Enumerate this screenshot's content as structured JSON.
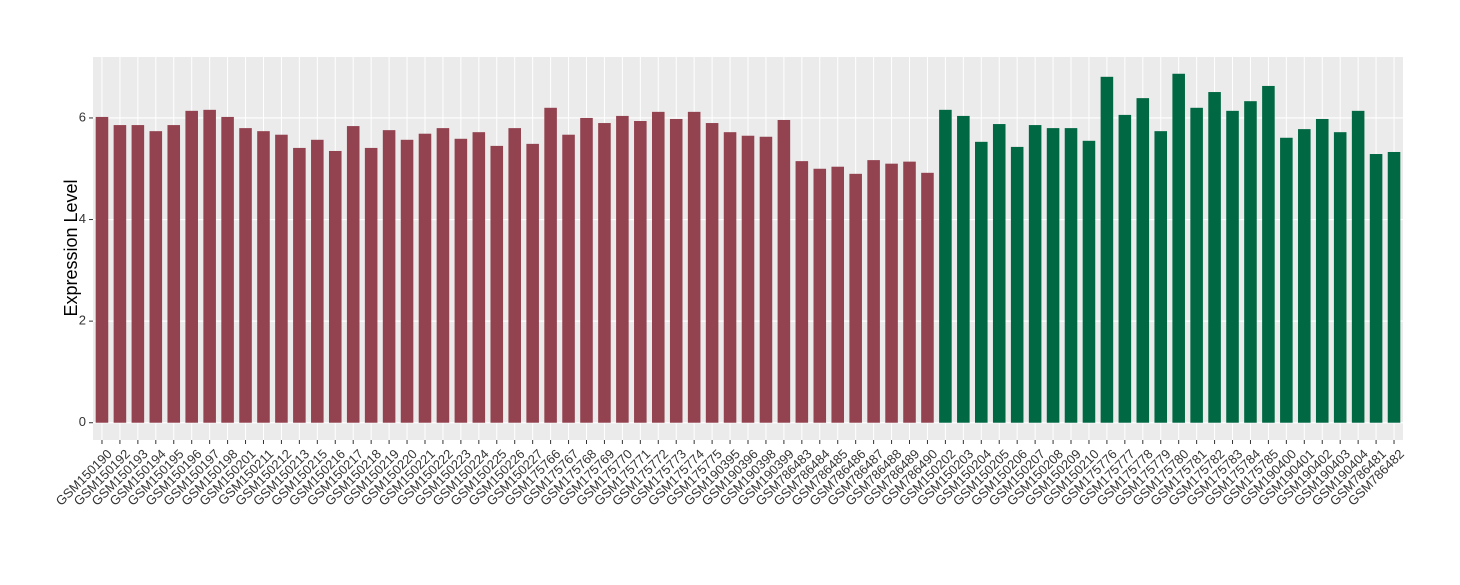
{
  "chart_data": {
    "type": "bar",
    "y_label": "Expression Level",
    "categories": [
      "GSM150190",
      "GSM150192",
      "GSM150193",
      "GSM150194",
      "GSM150195",
      "GSM150196",
      "GSM150197",
      "GSM150198",
      "GSM150201",
      "GSM150211",
      "GSM150212",
      "GSM150213",
      "GSM150215",
      "GSM150216",
      "GSM150217",
      "GSM150218",
      "GSM150219",
      "GSM150220",
      "GSM150221",
      "GSM150222",
      "GSM150223",
      "GSM150224",
      "GSM150225",
      "GSM150226",
      "GSM150227",
      "GSM175766",
      "GSM175767",
      "GSM175768",
      "GSM175769",
      "GSM175770",
      "GSM175771",
      "GSM175772",
      "GSM175773",
      "GSM175774",
      "GSM175775",
      "GSM190395",
      "GSM190396",
      "GSM190398",
      "GSM190399",
      "GSM786483",
      "GSM786484",
      "GSM786485",
      "GSM786486",
      "GSM786487",
      "GSM786488",
      "GSM786489",
      "GSM786490",
      "GSM150202",
      "GSM150203",
      "GSM150204",
      "GSM150205",
      "GSM150206",
      "GSM150207",
      "GSM150208",
      "GSM150209",
      "GSM150210",
      "GSM175776",
      "GSM175777",
      "GSM175778",
      "GSM175779",
      "GSM175780",
      "GSM175781",
      "GSM175782",
      "GSM175783",
      "GSM175784",
      "GSM175785",
      "GSM190400",
      "GSM190401",
      "GSM190402",
      "GSM190403",
      "GSM190404",
      "GSM786481",
      "GSM786482"
    ],
    "values": [
      6.02,
      5.86,
      5.86,
      5.74,
      5.86,
      6.14,
      6.16,
      6.02,
      5.8,
      5.74,
      5.67,
      5.41,
      5.57,
      5.35,
      5.84,
      5.41,
      5.76,
      5.57,
      5.69,
      5.8,
      5.59,
      5.72,
      5.45,
      5.8,
      5.49,
      6.2,
      5.67,
      6.0,
      5.9,
      6.04,
      5.94,
      6.12,
      5.98,
      6.12,
      5.9,
      5.72,
      5.65,
      5.63,
      5.96,
      5.15,
      5.0,
      5.04,
      4.9,
      5.17,
      5.1,
      5.14,
      4.92,
      6.16,
      6.04,
      5.53,
      5.88,
      5.43,
      5.86,
      5.8,
      5.8,
      5.55,
      6.81,
      6.06,
      6.39,
      5.74,
      6.87,
      6.2,
      6.51,
      6.14,
      6.33,
      6.63,
      5.61,
      5.78,
      5.98,
      5.72,
      6.14,
      5.29,
      5.33
    ],
    "colors": [
      "#934350",
      "#934350",
      "#934350",
      "#934350",
      "#934350",
      "#934350",
      "#934350",
      "#934350",
      "#934350",
      "#934350",
      "#934350",
      "#934350",
      "#934350",
      "#934350",
      "#934350",
      "#934350",
      "#934350",
      "#934350",
      "#934350",
      "#934350",
      "#934350",
      "#934350",
      "#934350",
      "#934350",
      "#934350",
      "#934350",
      "#934350",
      "#934350",
      "#934350",
      "#934350",
      "#934350",
      "#934350",
      "#934350",
      "#934350",
      "#934350",
      "#934350",
      "#934350",
      "#934350",
      "#934350",
      "#934350",
      "#934350",
      "#934350",
      "#934350",
      "#934350",
      "#934350",
      "#934350",
      "#934350",
      "#006843",
      "#006843",
      "#006843",
      "#006843",
      "#006843",
      "#006843",
      "#006843",
      "#006843",
      "#006843",
      "#006843",
      "#006843",
      "#006843",
      "#006843",
      "#006843",
      "#006843",
      "#006843",
      "#006843",
      "#006843",
      "#006843",
      "#006843",
      "#006843",
      "#006843",
      "#006843",
      "#006843",
      "#006843",
      "#006843"
    ],
    "ylim": [
      -0.34,
      7.2
    ],
    "yticks": [
      0,
      2,
      4,
      6
    ],
    "grid": true
  }
}
